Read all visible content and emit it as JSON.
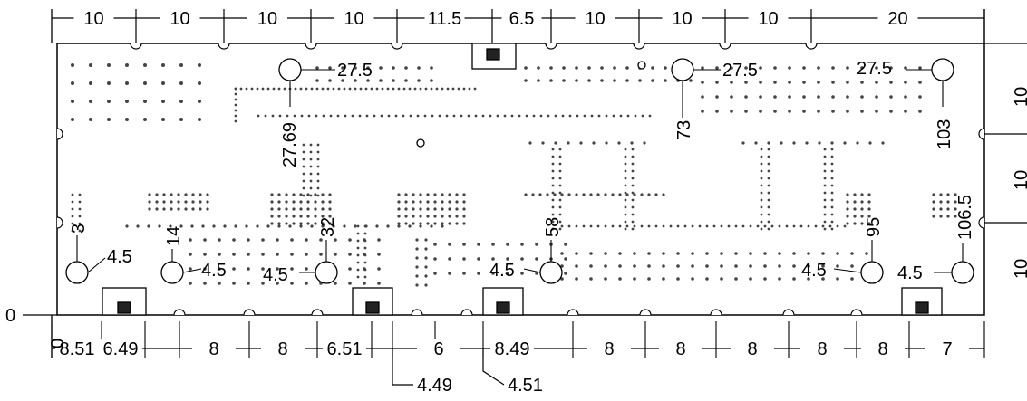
{
  "top_dimensions": [
    "10",
    "10",
    "10",
    "10",
    "11.5",
    "6.5",
    "10",
    "10",
    "10",
    "20"
  ],
  "bottom_dimensions": [
    "8.51",
    "6.49",
    "8",
    "8",
    "6.51",
    "6",
    "8.49",
    "8",
    "8",
    "8",
    "8",
    "8",
    "7"
  ],
  "bottom_callouts": [
    "4.49",
    "4.51"
  ],
  "origin_labels": {
    "x0": "0",
    "y0": "0"
  },
  "hole_labels": {
    "top_left": "27.5",
    "top_mid": "27.5",
    "top_right": "27.5",
    "diam1": "4.5",
    "diam2": "4.5",
    "diam3": "4.5",
    "diam4": "4.5",
    "diam5": "4.5",
    "diam6": "4.5"
  },
  "vertical_labels": {
    "v_27_69": "27.69",
    "v_3": "3",
    "v_14": "14",
    "v_32": "32",
    "v_58": "58",
    "v_73": "73",
    "v_95": "95",
    "v_103": "103",
    "v_106_5": "106.5",
    "right_10a": "10",
    "right_10b": "10",
    "right_10c": "10"
  },
  "colors": {
    "line": "#000000",
    "dot": "#444444",
    "background": "#ffffff"
  }
}
